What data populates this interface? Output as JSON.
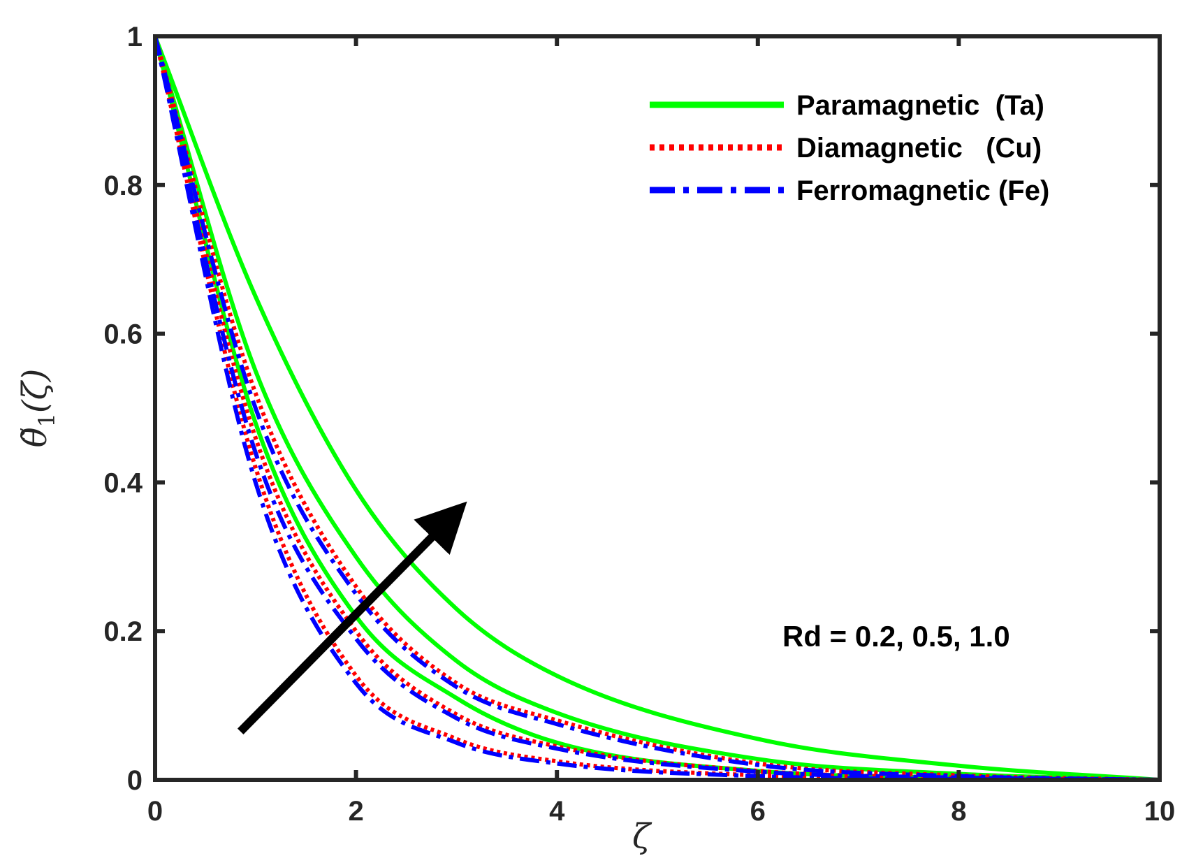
{
  "chart_data": {
    "type": "line",
    "xlabel": "ζ",
    "ylabel": "θ̃1(ζ)",
    "ylabel_base": "θ̃",
    "ylabel_sub": "1",
    "ylabel_arg": "(ζ)",
    "xlim": [
      0,
      10
    ],
    "ylim": [
      0,
      1
    ],
    "x_ticks": [
      0,
      2,
      4,
      6,
      8,
      10
    ],
    "y_ticks": [
      0,
      0.2,
      0.4,
      0.6,
      0.8,
      1
    ],
    "x_tick_labels": [
      "0",
      "2",
      "4",
      "6",
      "8",
      "10"
    ],
    "y_tick_labels": [
      "0",
      "0.2",
      "0.4",
      "0.6",
      "0.8",
      "1"
    ],
    "grid": false,
    "legend_position": "top-right",
    "legend": [
      {
        "label": "Paramagnetic  (Ta)",
        "color": "#00ff00",
        "style": "solid"
      },
      {
        "label": "Diamagnetic   (Cu)",
        "color": "#ff0000",
        "style": "dotted"
      },
      {
        "label": "Ferromagnetic (Fe)",
        "color": "#0000ff",
        "style": "dashdot"
      }
    ],
    "annotation": "Rd = 0.2, 0.5, 1.0",
    "arrow": {
      "from": [
        0.85,
        0.065
      ],
      "to": [
        3.0,
        0.36
      ]
    },
    "series": [
      {
        "group": "Paramagnetic  (Ta)",
        "Rd": 0.2,
        "color": "#00ff00",
        "style": "solid",
        "x": [
          0,
          1,
          2,
          3,
          4,
          6,
          8,
          10
        ],
        "y": [
          1,
          0.48,
          0.22,
          0.11,
          0.05,
          0.012,
          0.003,
          0
        ]
      },
      {
        "group": "Paramagnetic  (Ta)",
        "Rd": 0.5,
        "color": "#00ff00",
        "style": "solid",
        "x": [
          0,
          1,
          2,
          3,
          4,
          6,
          8,
          10
        ],
        "y": [
          1,
          0.55,
          0.3,
          0.16,
          0.09,
          0.028,
          0.008,
          0
        ]
      },
      {
        "group": "Paramagnetic  (Ta)",
        "Rd": 1.0,
        "color": "#00ff00",
        "style": "solid",
        "x": [
          0,
          1,
          2,
          3,
          4,
          6,
          8,
          10
        ],
        "y": [
          1,
          0.65,
          0.39,
          0.23,
          0.14,
          0.055,
          0.019,
          0
        ]
      },
      {
        "group": "Diamagnetic   (Cu)",
        "Rd": 0.2,
        "color": "#ff0000",
        "style": "dotted",
        "x": [
          0,
          1,
          2,
          3,
          4,
          6,
          8,
          10
        ],
        "y": [
          1,
          0.42,
          0.14,
          0.055,
          0.025,
          0.006,
          0.001,
          0
        ]
      },
      {
        "group": "Diamagnetic   (Cu)",
        "Rd": 0.5,
        "color": "#ff0000",
        "style": "dotted",
        "x": [
          0,
          1,
          2,
          3,
          4,
          6,
          8,
          10
        ],
        "y": [
          1,
          0.46,
          0.2,
          0.088,
          0.045,
          0.012,
          0.003,
          0
        ]
      },
      {
        "group": "Diamagnetic   (Cu)",
        "Rd": 1.0,
        "color": "#ff0000",
        "style": "dotted",
        "x": [
          0,
          1,
          2,
          3,
          4,
          6,
          8,
          10
        ],
        "y": [
          1,
          0.52,
          0.26,
          0.13,
          0.08,
          0.022,
          0.006,
          0
        ]
      },
      {
        "group": "Ferromagnetic (Fe)",
        "Rd": 0.2,
        "color": "#0000ff",
        "style": "dashdot",
        "x": [
          0,
          1,
          2,
          3,
          4,
          6,
          8,
          10
        ],
        "y": [
          1,
          0.4,
          0.13,
          0.05,
          0.022,
          0.005,
          0.001,
          0
        ]
      },
      {
        "group": "Ferromagnetic (Fe)",
        "Rd": 0.5,
        "color": "#0000ff",
        "style": "dashdot",
        "x": [
          0,
          1,
          2,
          3,
          4,
          6,
          8,
          10
        ],
        "y": [
          1,
          0.44,
          0.19,
          0.083,
          0.042,
          0.011,
          0.003,
          0
        ]
      },
      {
        "group": "Ferromagnetic (Fe)",
        "Rd": 1.0,
        "color": "#0000ff",
        "style": "dashdot",
        "x": [
          0,
          1,
          2,
          3,
          4,
          6,
          8,
          10
        ],
        "y": [
          1,
          0.5,
          0.25,
          0.125,
          0.075,
          0.02,
          0.005,
          0
        ]
      }
    ]
  }
}
